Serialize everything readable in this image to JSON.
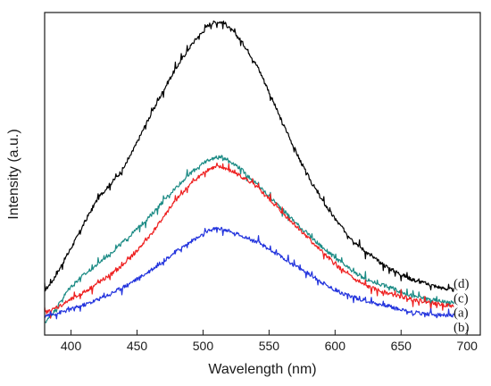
{
  "chart_data": {
    "type": "line",
    "title": "",
    "xlabel": "Wavelength (nm)",
    "ylabel": "Intensity (a.u.)",
    "xlim": [
      380,
      710
    ],
    "ylim": [
      0,
      1.0
    ],
    "xticks": [
      400,
      450,
      500,
      550,
      600,
      650,
      700
    ],
    "x": [
      380,
      400,
      420,
      440,
      460,
      480,
      500,
      510,
      520,
      540,
      560,
      580,
      600,
      620,
      640,
      660,
      690
    ],
    "series": [
      {
        "name": "(d)",
        "color": "#000000",
        "values": [
          0.14,
          0.27,
          0.42,
          0.52,
          0.68,
          0.83,
          0.94,
          0.97,
          0.95,
          0.84,
          0.66,
          0.49,
          0.36,
          0.27,
          0.21,
          0.17,
          0.14
        ]
      },
      {
        "name": "(c)",
        "color": "#1a8a84",
        "values": [
          0.04,
          0.15,
          0.22,
          0.29,
          0.37,
          0.46,
          0.53,
          0.55,
          0.54,
          0.47,
          0.39,
          0.31,
          0.24,
          0.18,
          0.15,
          0.12,
          0.1
        ]
      },
      {
        "name": "(a)",
        "color": "#ee2020",
        "values": [
          0.07,
          0.11,
          0.16,
          0.22,
          0.31,
          0.42,
          0.5,
          0.52,
          0.51,
          0.46,
          0.38,
          0.3,
          0.22,
          0.16,
          0.13,
          0.11,
          0.09
        ]
      },
      {
        "name": "(b)",
        "color": "#2233dd",
        "values": [
          0.06,
          0.08,
          0.11,
          0.15,
          0.2,
          0.26,
          0.31,
          0.33,
          0.32,
          0.29,
          0.24,
          0.19,
          0.14,
          0.11,
          0.09,
          0.07,
          0.06
        ]
      }
    ],
    "curve_labels": [
      {
        "text": "(d)",
        "value": 0.16
      },
      {
        "text": "(c)",
        "value": 0.115
      },
      {
        "text": "(a)",
        "value": 0.07
      },
      {
        "text": "(b)",
        "value": 0.025
      }
    ]
  }
}
